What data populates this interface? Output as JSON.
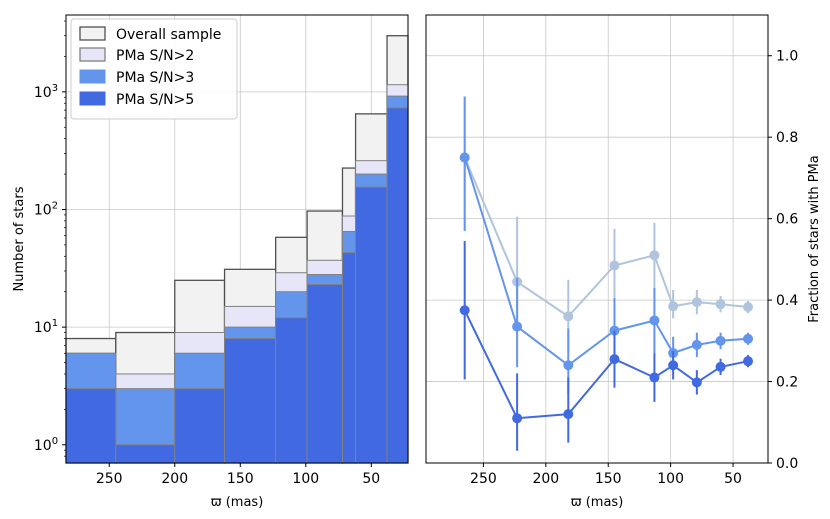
{
  "colors": {
    "overall": "#f2f2f2",
    "sn2": "#e6e6f8",
    "sn3": "#6495ed",
    "sn5": "#4169e1",
    "edge": "#808080",
    "grid": "#c8c8c8",
    "line_sn2": "#b0c4de",
    "line_sn3": "#6495ed",
    "line_sn5": "#4169e1"
  },
  "chart_data": [
    {
      "type": "bar",
      "subtype": "stacked-histogram-log",
      "xlabel": "ϖ (mas)",
      "ylabel": "Number of stars",
      "x_inverted": true,
      "xlim": [
        283,
        22
      ],
      "y_log": true,
      "ylim": [
        0.7,
        4500
      ],
      "x_ticks": [
        250,
        200,
        150,
        100,
        50
      ],
      "x_tick_labels": [
        "250",
        "200",
        "150",
        "100",
        "50"
      ],
      "y_ticks": [
        1,
        10,
        100,
        1000
      ],
      "y_tick_labels": [
        {
          "base": "10",
          "exp": "0"
        },
        {
          "base": "10",
          "exp": "1"
        },
        {
          "base": "10",
          "exp": "2"
        },
        {
          "base": "10",
          "exp": "3"
        }
      ],
      "grid": true,
      "legend_position": "top-left",
      "bin_edges": [
        283,
        245,
        200,
        162,
        123,
        99,
        72,
        62,
        38,
        22
      ],
      "series": [
        {
          "name": "Overall  sample",
          "key": "overall",
          "values": [
            8,
            9,
            25,
            31,
            58,
            97,
            225,
            650,
            3000
          ]
        },
        {
          "name": "PMa S/N>2",
          "key": "sn2",
          "values": [
            6,
            4,
            9,
            15,
            29,
            37,
            88,
            260,
            1150
          ]
        },
        {
          "name": "PMa S/N>3",
          "key": "sn3",
          "values": [
            6,
            3,
            6,
            10,
            20,
            28,
            65,
            200,
            920
          ]
        },
        {
          "name": "PMa S/N>5",
          "key": "sn5",
          "values": [
            3,
            1,
            3,
            8,
            12,
            23,
            43,
            155,
            730
          ]
        }
      ]
    },
    {
      "type": "line",
      "subtype": "errorbar",
      "xlabel": "ϖ (mas)",
      "ylabel": "Fraction of stars with PMa",
      "x_inverted": true,
      "xlim": [
        296,
        22
      ],
      "ylim": [
        0.0,
        1.1
      ],
      "x_ticks": [
        250,
        200,
        150,
        100,
        50
      ],
      "x_tick_labels": [
        "250",
        "200",
        "150",
        "100",
        "50"
      ],
      "y_ticks": [
        0.0,
        0.2,
        0.4,
        0.6,
        0.8,
        1.0
      ],
      "y_tick_labels": [
        "0.0",
        "0.2",
        "0.4",
        "0.6",
        "0.8",
        "1.0"
      ],
      "y_axis_side": "right",
      "grid": true,
      "x": [
        265,
        223,
        182,
        145,
        113,
        98,
        79,
        60,
        38
      ],
      "series": [
        {
          "key": "sn2",
          "values": [
            0.75,
            0.445,
            0.36,
            0.485,
            0.51,
            0.385,
            0.395,
            0.39,
            0.383
          ],
          "err_low": [
            0.18,
            0.1,
            0.09,
            0.09,
            0.08,
            0.03,
            0.03,
            0.02,
            0.015
          ],
          "err_high": [
            0.15,
            0.16,
            0.09,
            0.09,
            0.08,
            0.04,
            0.03,
            0.02,
            0.015
          ]
        },
        {
          "key": "sn3",
          "values": [
            0.75,
            0.335,
            0.24,
            0.325,
            0.35,
            0.27,
            0.29,
            0.3,
            0.305
          ],
          "err_low": [
            0.18,
            0.1,
            0.07,
            0.07,
            0.08,
            0.03,
            0.03,
            0.02,
            0.015
          ],
          "err_high": [
            0.15,
            0.12,
            0.09,
            0.08,
            0.08,
            0.04,
            0.03,
            0.02,
            0.015
          ]
        },
        {
          "key": "sn5",
          "values": [
            0.375,
            0.11,
            0.12,
            0.255,
            0.21,
            0.24,
            0.198,
            0.236,
            0.25
          ],
          "err_low": [
            0.17,
            0.08,
            0.07,
            0.07,
            0.06,
            0.035,
            0.03,
            0.02,
            0.015
          ],
          "err_high": [
            0.17,
            0.11,
            0.09,
            0.07,
            0.06,
            0.035,
            0.03,
            0.02,
            0.015
          ]
        }
      ]
    }
  ]
}
